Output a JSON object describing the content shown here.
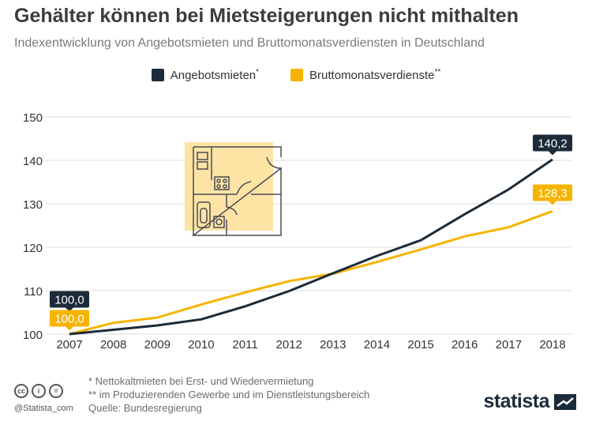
{
  "title": "Gehälter können bei Mietsteigerungen nicht mithalten",
  "subtitle": "Indexentwicklung von Angebotsmieten und Bruttomonatsverdiensten in Deutschland",
  "legend": {
    "series_1": "Angebotsmieten",
    "series_1_mark": "*",
    "series_2": "Bruttomonatsverdienste",
    "series_2_mark": "**"
  },
  "colors": {
    "navy": "#1c2b39",
    "yellow": "#f6b400",
    "grid": "#dcdcdc",
    "illustration_fill": "#fde4a5",
    "illustration_line": "#4a4a55"
  },
  "chart_data": {
    "type": "line",
    "x": [
      "2007",
      "2008",
      "2009",
      "2010",
      "2011",
      "2012",
      "2013",
      "2014",
      "2015",
      "2016",
      "2017",
      "2018"
    ],
    "yticks": [
      "100",
      "110",
      "120",
      "130",
      "140",
      "150"
    ],
    "ylim": [
      100,
      150
    ],
    "grid": true,
    "legend_position": "top-center",
    "series": [
      {
        "name": "Angebotsmieten*",
        "color": "#1c2b39",
        "values": [
          100.0,
          101.0,
          102.0,
          103.4,
          106.4,
          109.9,
          114.0,
          118.0,
          121.6,
          127.6,
          133.3,
          140.2
        ]
      },
      {
        "name": "Bruttomonatsverdienste**",
        "color": "#f6b400",
        "values": [
          100.0,
          102.6,
          103.8,
          106.8,
          109.6,
          112.2,
          113.9,
          116.6,
          119.5,
          122.5,
          124.6,
          128.3
        ]
      }
    ],
    "annotations": {
      "angebot_start": "100,0",
      "angebot_end": "140,2",
      "brutto_start": "100,0",
      "brutto_end": "128,3"
    }
  },
  "footnotes": {
    "note_1": "*   Nettokaltmieten bei Erst- und Wiedervermietung",
    "note_2": "** im Produzierenden Gewerbe und im Dienstleistungsbereich",
    "source": "Quelle: Bundesregierung"
  },
  "branding": {
    "handle": "@Statista_com",
    "logo_text": "statista",
    "license_icons": [
      "cc-icon",
      "by-icon",
      "nd-icon"
    ],
    "license_labels": [
      "cc",
      "i",
      "="
    ]
  }
}
